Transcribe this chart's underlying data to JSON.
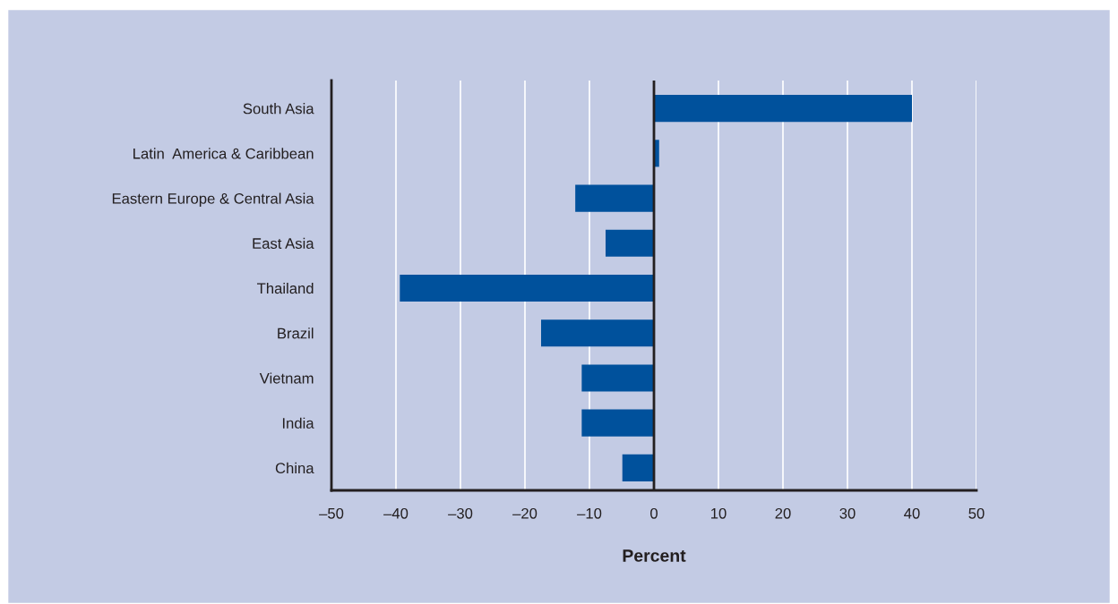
{
  "chart_data": {
    "type": "bar",
    "orientation": "horizontal",
    "xlabel": "Percent",
    "categories": [
      "South Asia",
      "Latin  America & Caribbean",
      "Eastern Europe & Central Asia",
      "East Asia",
      "Thailand",
      "Brazil",
      "Vietnam",
      "India",
      "China"
    ],
    "values": [
      40,
      0.8,
      -12.2,
      -7.5,
      -39.4,
      -17.5,
      -11.2,
      -11.2,
      -4.9
    ],
    "color": "#00519c",
    "xlim": [
      -50,
      50
    ],
    "xticks": [
      {
        "value": -50,
        "label": "–50"
      },
      {
        "value": -40,
        "label": "–40"
      },
      {
        "value": -30,
        "label": "–30"
      },
      {
        "value": -20,
        "label": "–20"
      },
      {
        "value": -10,
        "label": "–10"
      },
      0,
      10,
      20,
      30,
      40,
      50
    ],
    "grid": "x",
    "ref_lines": [
      {
        "axis": "x",
        "value": 0,
        "color": "#231f20"
      }
    ]
  }
}
